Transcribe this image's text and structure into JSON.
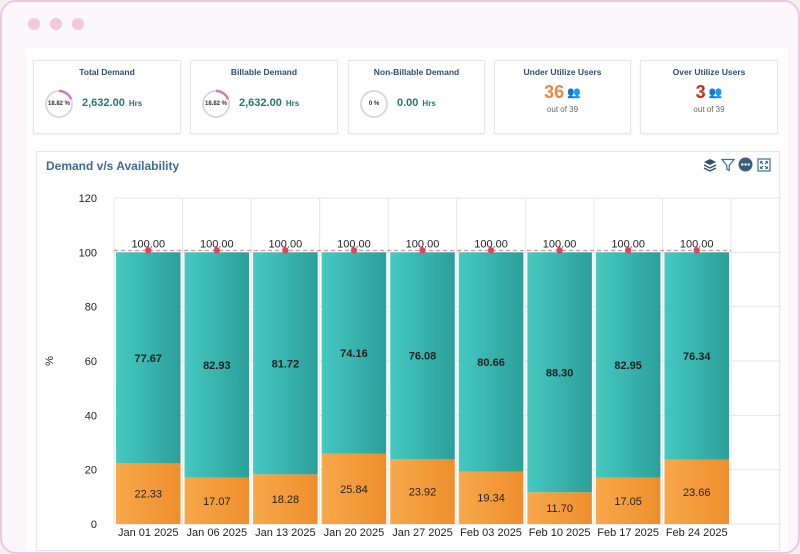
{
  "kpis": [
    {
      "title": "Total Demand",
      "percent": "18.82 %",
      "percent_value": 18.82,
      "value": "2,632.00",
      "unit": "Hrs"
    },
    {
      "title": "Billable Demand",
      "percent": "18.82 %",
      "percent_value": 18.82,
      "value": "2,632.00",
      "unit": "Hrs"
    },
    {
      "title": "Non-Billable Demand",
      "percent": "0 %",
      "percent_value": 0,
      "value": "0.00",
      "unit": "Hrs"
    }
  ],
  "users": [
    {
      "title": "Under Utilize Users",
      "count": "36",
      "sub": "out of 39",
      "color": "#e88a43"
    },
    {
      "title": "Over Utilize Users",
      "count": "3",
      "sub": "out of 39",
      "color": "#c5301a"
    }
  ],
  "chart_panel": {
    "title": "Demand v/s Availability"
  },
  "toolbar": {
    "icons": [
      "layers-icon",
      "filter-icon",
      "more-icon",
      "fullscreen-icon"
    ]
  },
  "colors": {
    "availability": "#3dbdb7",
    "demand": "#f49a3a",
    "total_marker": "#e0455d",
    "ring_accent": "#c77dba"
  },
  "chart_data": {
    "type": "bar",
    "stacked": true,
    "categories": [
      "Jan 01 2025",
      "Jan 06 2025",
      "Jan 13 2025",
      "Jan 20 2025",
      "Jan 27 2025",
      "Feb 03 2025",
      "Feb 10 2025",
      "Feb 17 2025",
      "Feb 24 2025"
    ],
    "series": [
      {
        "values": [
          22.33,
          17.07,
          18.28,
          25.84,
          23.92,
          19.34,
          11.7,
          17.05,
          23.66
        ],
        "labels": [
          "22.33",
          "17.07",
          "18.28",
          "25.84",
          "23.92",
          "19.34",
          "11.70",
          "17.05",
          "23.66"
        ]
      },
      {
        "values": [
          77.67,
          82.93,
          81.72,
          74.16,
          76.08,
          80.66,
          88.3,
          82.95,
          76.34
        ],
        "labels": [
          "77.67",
          "82.93",
          "81.72",
          "74.16",
          "76.08",
          "80.66",
          "88.30",
          "82.95",
          "76.34"
        ]
      }
    ],
    "totals": [
      100,
      100,
      100,
      100,
      100,
      100,
      100,
      100,
      100
    ],
    "total_labels": [
      "100.00",
      "100.00",
      "100.00",
      "100.00",
      "100.00",
      "100.00",
      "100.00",
      "100.00",
      "100.00"
    ],
    "ylabel": "%",
    "xlabel": "",
    "ylim": [
      0,
      120
    ],
    "yticks": [
      0,
      20,
      40,
      60,
      80,
      100,
      120
    ],
    "ytick_labels": [
      "0",
      "20",
      "40",
      "60",
      "80",
      "100",
      "120"
    ],
    "reference_line": 100,
    "grid": true,
    "legend": "none"
  }
}
